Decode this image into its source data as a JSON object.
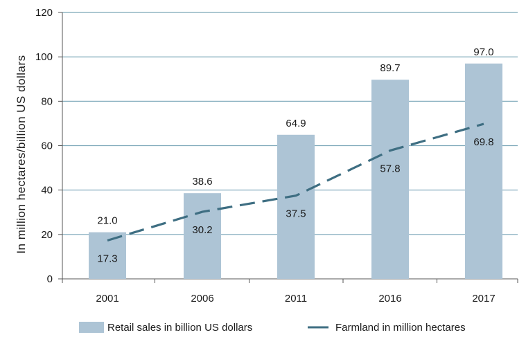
{
  "chart_data": {
    "type": "bar",
    "categories": [
      "2001",
      "2006",
      "2011",
      "2016",
      "2017"
    ],
    "series": [
      {
        "name": "Retail sales in billion US dollars",
        "kind": "bar",
        "values": [
          21.0,
          38.6,
          64.9,
          89.7,
          97.0
        ],
        "labels": [
          "21.0",
          "38.6",
          "64.9",
          "89.7",
          "97.0"
        ]
      },
      {
        "name": "Farmland in million hectares",
        "kind": "line",
        "style": "dashed",
        "values": [
          17.3,
          30.2,
          37.5,
          57.8,
          69.8
        ],
        "labels": [
          "17.3",
          "30.2",
          "37.5",
          "57.8",
          "69.8"
        ]
      }
    ],
    "ylabel": "In million hectares/billion US dollars",
    "xlabel": "",
    "ylim": [
      0,
      120
    ],
    "yticks": [
      "0",
      "20",
      "40",
      "60",
      "80",
      "100",
      "120"
    ],
    "grid": true,
    "legend": "bottom",
    "colors": {
      "bar": "#adc4d5",
      "line": "#3e6e82",
      "grid": "#7aa6b8",
      "axis": "#555555"
    }
  }
}
